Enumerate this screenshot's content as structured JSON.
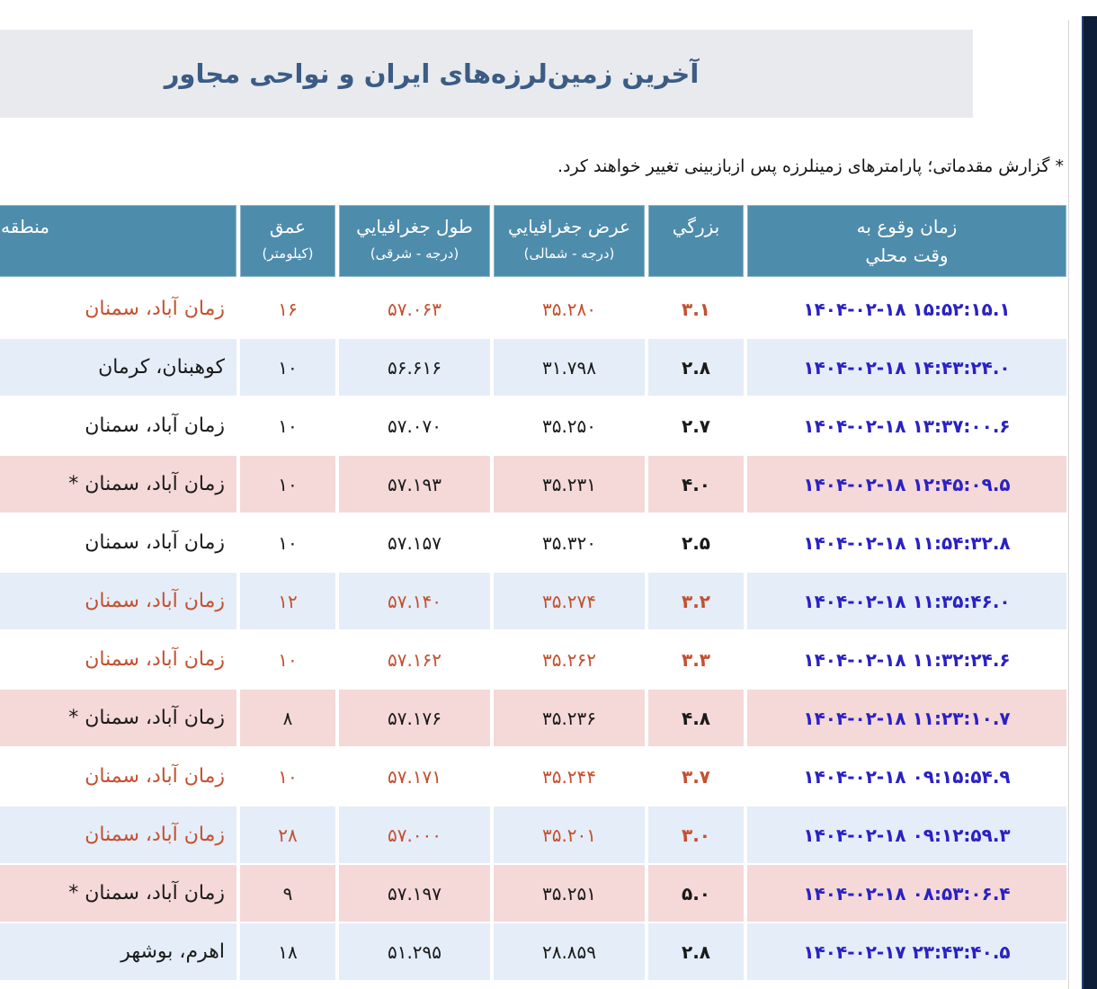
{
  "page": {
    "title": "آخرین زمین‌لرزه‌های ایران و نواحی مجاور",
    "note": "* گزارش مقدماتی؛ پارامترهای زمینلرزه پس ازبازبینی تغییر خواهند کرد."
  },
  "table": {
    "headers": {
      "region": "منطقه",
      "depth": "عمق",
      "depth_unit": "(کیلومتر)",
      "longitude": "طول جغرافيايي",
      "longitude_unit": "(درجه - شرقی)",
      "latitude": "عرض جغرافيايي",
      "latitude_unit": "(درجه - شمالی)",
      "magnitude": "بزرگي",
      "time_line1": "زمان وقوع به",
      "time_line2": "وقت محلي"
    },
    "rows": [
      {
        "time": "۱۴۰۴-۰۲-۱۸ ۱۵:۵۲:۱۵.۱",
        "magnitude": "۳.۱",
        "latitude": "۳۵.۲۸۰",
        "longitude": "۵۷.۰۶۳",
        "depth": "۱۶",
        "region": "زمان آباد، سمنان",
        "bg": "white",
        "fg": "orange"
      },
      {
        "time": "۱۴۰۴-۰۲-۱۸ ۱۴:۴۳:۲۴.۰",
        "magnitude": "۲.۸",
        "latitude": "۳۱.۷۹۸",
        "longitude": "۵۶.۶۱۶",
        "depth": "۱۰",
        "region": "کوهبنان، کرمان",
        "bg": "blue",
        "fg": "black"
      },
      {
        "time": "۱۴۰۴-۰۲-۱۸ ۱۳:۳۷:۰۰.۶",
        "magnitude": "۲.۷",
        "latitude": "۳۵.۲۵۰",
        "longitude": "۵۷.۰۷۰",
        "depth": "۱۰",
        "region": "زمان آباد، سمنان",
        "bg": "white",
        "fg": "black"
      },
      {
        "time": "۱۴۰۴-۰۲-۱۸ ۱۲:۴۵:۰۹.۵",
        "magnitude": "۴.۰",
        "latitude": "۳۵.۲۳۱",
        "longitude": "۵۷.۱۹۳",
        "depth": "۱۰",
        "region": "زمان آباد، سمنان *",
        "bg": "pink",
        "fg": "black"
      },
      {
        "time": "۱۴۰۴-۰۲-۱۸ ۱۱:۵۴:۳۲.۸",
        "magnitude": "۲.۵",
        "latitude": "۳۵.۳۲۰",
        "longitude": "۵۷.۱۵۷",
        "depth": "۱۰",
        "region": "زمان آباد، سمنان",
        "bg": "white",
        "fg": "black"
      },
      {
        "time": "۱۴۰۴-۰۲-۱۸ ۱۱:۳۵:۴۶.۰",
        "magnitude": "۳.۲",
        "latitude": "۳۵.۲۷۴",
        "longitude": "۵۷.۱۴۰",
        "depth": "۱۲",
        "region": "زمان آباد، سمنان",
        "bg": "blue",
        "fg": "orange"
      },
      {
        "time": "۱۴۰۴-۰۲-۱۸ ۱۱:۳۲:۲۴.۶",
        "magnitude": "۳.۳",
        "latitude": "۳۵.۲۶۲",
        "longitude": "۵۷.۱۶۲",
        "depth": "۱۰",
        "region": "زمان آباد، سمنان",
        "bg": "white",
        "fg": "orange"
      },
      {
        "time": "۱۴۰۴-۰۲-۱۸ ۱۱:۲۳:۱۰.۷",
        "magnitude": "۴.۸",
        "latitude": "۳۵.۲۳۶",
        "longitude": "۵۷.۱۷۶",
        "depth": "۸",
        "region": "زمان آباد، سمنان *",
        "bg": "pink",
        "fg": "black"
      },
      {
        "time": "۱۴۰۴-۰۲-۱۸ ۰۹:۱۵:۵۴.۹",
        "magnitude": "۳.۷",
        "latitude": "۳۵.۲۴۴",
        "longitude": "۵۷.۱۷۱",
        "depth": "۱۰",
        "region": "زمان آباد، سمنان",
        "bg": "white",
        "fg": "orange"
      },
      {
        "time": "۱۴۰۴-۰۲-۱۸ ۰۹:۱۲:۵۹.۳",
        "magnitude": "۳.۰",
        "latitude": "۳۵.۲۰۱",
        "longitude": "۵۷.۰۰۰",
        "depth": "۲۸",
        "region": "زمان آباد، سمنان",
        "bg": "blue",
        "fg": "orange"
      },
      {
        "time": "۱۴۰۴-۰۲-۱۸ ۰۸:۵۳:۰۶.۴",
        "magnitude": "۵.۰",
        "latitude": "۳۵.۲۵۱",
        "longitude": "۵۷.۱۹۷",
        "depth": "۹",
        "region": "زمان آباد، سمنان *",
        "bg": "pink",
        "fg": "black"
      },
      {
        "time": "۱۴۰۴-۰۲-۱۷ ۲۳:۴۳:۴۰.۵",
        "magnitude": "۲.۸",
        "latitude": "۲۸.۸۵۹",
        "longitude": "۵۱.۲۹۵",
        "depth": "۱۸",
        "region": "اهرم، بوشهر",
        "bg": "blue",
        "fg": "black"
      }
    ]
  },
  "colors": {
    "header_bg": "#4e8cac",
    "row_alt_bg": "#e4edf8",
    "row_highlight_bg": "#f5d8d8",
    "recent_text": "#c4502f",
    "time_link_text": "#2a21c3",
    "title_text": "#3b5c84",
    "title_band_bg": "#e8eaee",
    "edge_bar": "#0e1e38"
  }
}
